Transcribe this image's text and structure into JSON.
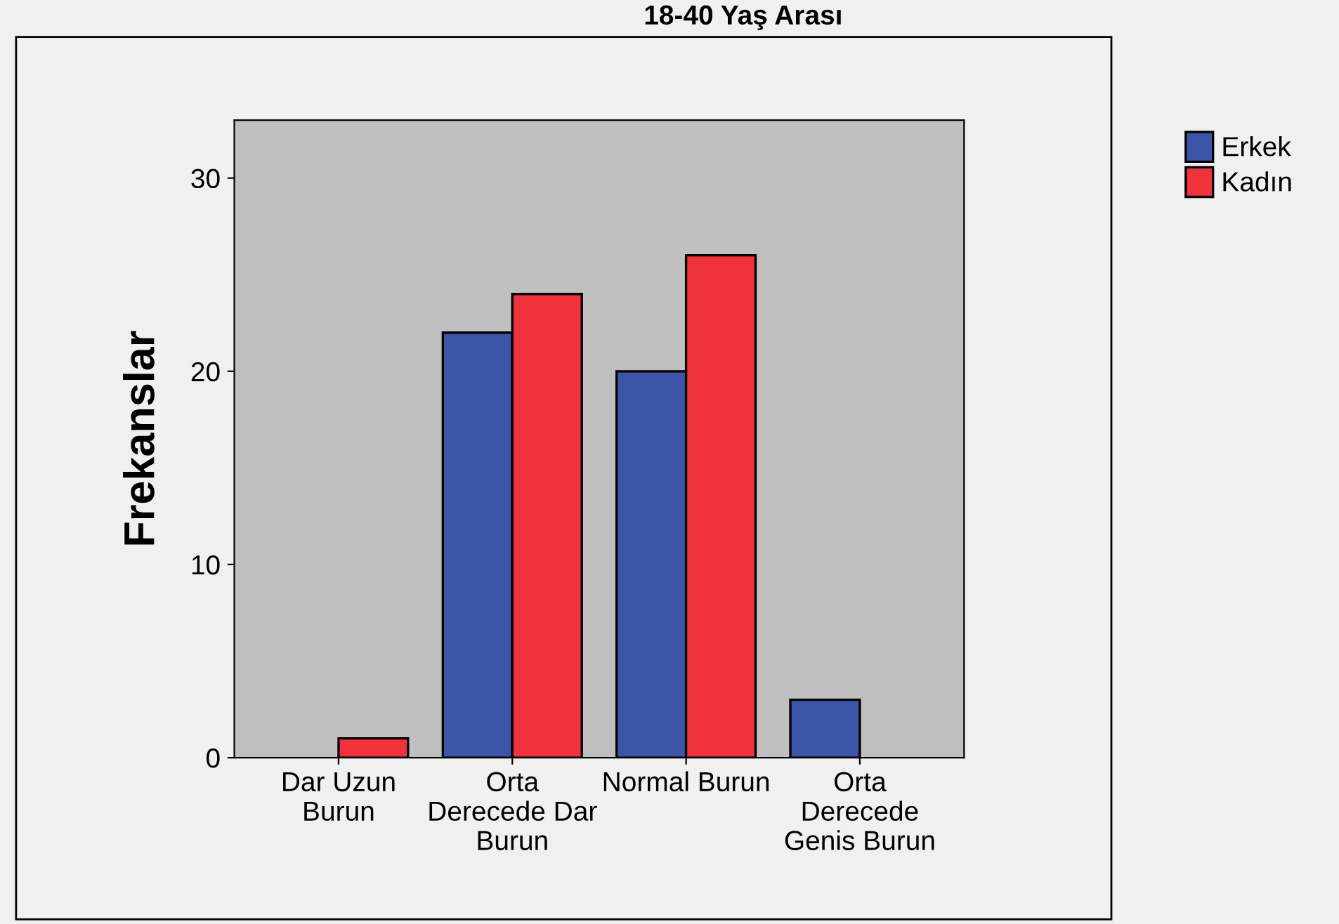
{
  "chart_data": {
    "type": "bar",
    "title": "18-40 Yaş Arası",
    "ylabel": "Frekanslar",
    "categories": [
      "Dar Uzun\nBurun",
      "Orta\nDerecede Dar\nBurun",
      "Normal Burun",
      "Orta\nDerecede\nGenis Burun"
    ],
    "series": [
      {
        "name": "Erkek",
        "color": "#3c55a8",
        "values": [
          null,
          22,
          20,
          3
        ]
      },
      {
        "name": "Kadın",
        "color": "#f0323c",
        "values": [
          1,
          24,
          26,
          null
        ]
      }
    ],
    "ylim": [
      0,
      33
    ],
    "yticks": [
      0,
      10,
      20,
      30
    ],
    "grid": false,
    "legend": "top right"
  }
}
